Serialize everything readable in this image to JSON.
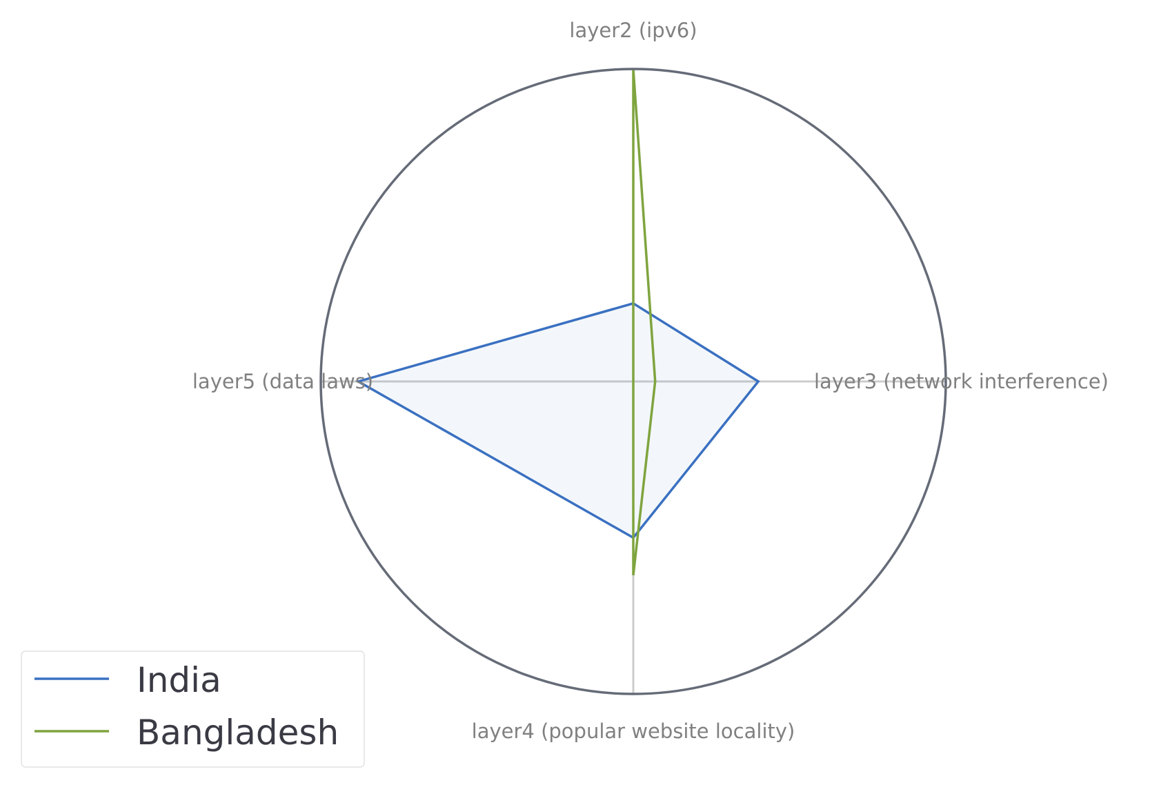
{
  "chart_data": {
    "type": "radar",
    "axes": [
      "layer2 (ipv6)",
      "layer3 (network interference)",
      "layer4 (popular website locality)",
      "layer5 (data laws)"
    ],
    "range": [
      0,
      1
    ],
    "grid": false,
    "legend_position": "bottom-left",
    "series": [
      {
        "name": "India",
        "values": [
          0.25,
          0.4,
          0.5,
          0.88
        ],
        "color": "#3a70c1",
        "fill": true
      },
      {
        "name": "Bangladesh",
        "values": [
          1.0,
          0.07,
          0.62,
          0.0
        ],
        "color": "#7fa43f",
        "fill": false
      }
    ],
    "frame_color": "#656b77",
    "spoke_color": "#cccccc"
  }
}
